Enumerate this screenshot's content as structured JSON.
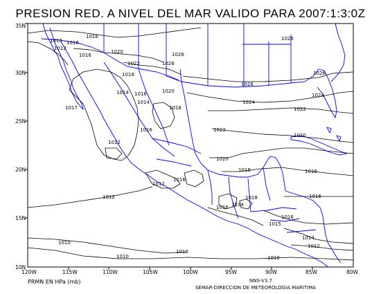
{
  "title": "PRESION RED. A NIVEL DEL MAR VALIDO PARA 2007:1:3:0Z",
  "units_label": "PRMN EN HPa (mb)",
  "version_label": "NNS-V3.7",
  "credit_label": "SEMAR-DIRECCION DE METEOROLOGIA MARITIMA",
  "lat_ticks": [
    "35N",
    "30N",
    "25N",
    "20N",
    "15N",
    "10N"
  ],
  "lon_ticks": [
    "120W",
    "115W",
    "110W",
    "105W",
    "100W",
    "95W",
    "90W",
    "85W",
    "80W"
  ],
  "isobar_labels": [
    "1016",
    "1016",
    "1020",
    "1016",
    "1026",
    "1026",
    "1022",
    "1026",
    "1018",
    "1026",
    "1026",
    "1020",
    "1014",
    "1016",
    "1024",
    "1024",
    "1014",
    "1022",
    "1017",
    "1016",
    "1016",
    "1022",
    "1020",
    "1012",
    "1020",
    "1018",
    "1016",
    "1016",
    "1012",
    "1018",
    "1016",
    "1012",
    "1016",
    "1014",
    "1016",
    "1015",
    "1012",
    "1010",
    "1010",
    "1010",
    "1010",
    "1014",
    "1012",
    "1016"
  ],
  "colors": {
    "isobar": "#000000",
    "coastline": "#0000ff",
    "background": "#ffffff"
  }
}
